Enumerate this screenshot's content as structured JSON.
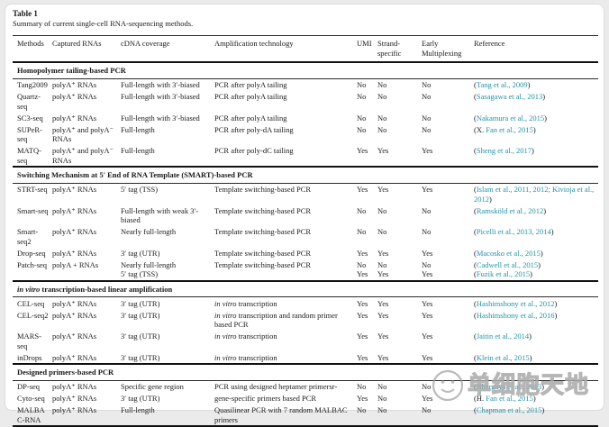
{
  "colors": {
    "citation_link": "#2093a8",
    "text": "#1a1a1a",
    "page_background": "#ebebeb"
  },
  "header": {
    "label": "Table 1",
    "caption": "Summary of current single-cell RNA-sequencing methods."
  },
  "table": {
    "columns": [
      "Methods",
      "Captured RNAs",
      "cDNA coverage",
      "Amplification technology",
      "UMI",
      "Strand-specific",
      "Early Multiplexing",
      "Reference"
    ],
    "sections": [
      {
        "title": "Homopolymer tailing-based PCR",
        "rows": [
          {
            "method": "Tang2009",
            "captured": "polyA⁺ RNAs",
            "coverage": "Full-length with 3′-biased",
            "amplification": "PCR after polyA tailing",
            "umi": "No",
            "strand": "No",
            "early": "No",
            "refs": [
              {
                "pre": "(",
                "link": "Tang et al., 2009",
                "post": ")"
              }
            ]
          },
          {
            "method": "Quartz-seq",
            "captured": "polyA⁺ RNAs",
            "coverage": "Full-length with 3′-biased",
            "amplification": "PCR after polyA tailing",
            "umi": "No",
            "strand": "No",
            "early": "No",
            "refs": [
              {
                "pre": "(",
                "link": "Sasagawa et al., 2013",
                "post": ")"
              }
            ]
          },
          {
            "method": "SC3-seq",
            "captured": "polyA⁺ RNAs",
            "coverage": "Full-length with 3′-biased",
            "amplification": "PCR after polyA tailing",
            "umi": "No",
            "strand": "No",
            "early": "No",
            "refs": [
              {
                "pre": "(",
                "link": "Nakamura et al., 2015",
                "post": ")"
              }
            ]
          },
          {
            "method": "SUPeR-seq",
            "captured": "polyA⁺ and polyA⁻ RNAs",
            "coverage": "Full-length",
            "amplification": "PCR after poly-dA tailing",
            "umi": "No",
            "strand": "No",
            "early": "No",
            "refs": [
              {
                "pre": "(X. ",
                "link": "Fan et al., 2015",
                "post": ")"
              }
            ]
          },
          {
            "method": "MATQ-seq",
            "captured": "polyA⁺ and polyA⁻ RNAs",
            "coverage": "Full-length",
            "amplification": "PCR after poly-dC tailing",
            "umi": "Yes",
            "strand": "Yes",
            "early": "Yes",
            "refs": [
              {
                "pre": "(",
                "link": "Sheng et al., 2017",
                "post": ")"
              }
            ]
          }
        ]
      },
      {
        "title": "Switching Mechanism at 5′ End of RNA Template (SMART)-based PCR",
        "rows": [
          {
            "method": "STRT-seq",
            "captured": "polyA⁺ RNAs",
            "coverage": "5′ tag (TSS)",
            "amplification": "Template switching-based PCR",
            "umi": "Yes",
            "strand": "Yes",
            "early": "Yes",
            "refs": [
              {
                "pre": "(",
                "link": "Islam et al., 2011, 2012; Kivioja et al., 2012",
                "post": ")"
              }
            ]
          },
          {
            "method": "Smart-seq",
            "captured": "polyA⁺ RNAs",
            "coverage": "Full-length with weak 3′-biased",
            "amplification": "Template switching-based PCR",
            "umi": "No",
            "strand": "No",
            "early": "No",
            "refs": [
              {
                "pre": "(",
                "link": "Ramsköld et al., 2012",
                "post": ")"
              }
            ]
          },
          {
            "method": "Smart-seq2",
            "captured": "polyA⁺ RNAs",
            "coverage": "Nearly full-length",
            "amplification": "Template switching-based PCR",
            "umi": "No",
            "strand": "No",
            "early": "No",
            "refs": [
              {
                "pre": "(",
                "link": "Picelli et al., 2013, 2014",
                "post": ")"
              }
            ]
          },
          {
            "method": "Drop-seq",
            "captured": "polyA⁺ RNAs",
            "coverage": "3′ tag (UTR)",
            "amplification": "Template switching-based PCR",
            "umi": "Yes",
            "strand": "Yes",
            "early": "Yes",
            "refs": [
              {
                "pre": "(",
                "link": "Macosko et al., 2015",
                "post": ")"
              }
            ]
          },
          {
            "method": "Patch-seq",
            "captured": "polyA + RNAs",
            "coverage": "Nearly full-length\n5′ tag (TSS)",
            "amplification": "Template switching-based PCR",
            "umi": "No\nYes",
            "strand": "No\nYes",
            "early": "No\nYes",
            "refs": [
              {
                "pre": "(",
                "link": "Cadwell et al., 2015",
                "post": ")"
              },
              {
                "pre": "(",
                "link": "Fuzik et al., 2015",
                "post": ")"
              }
            ]
          }
        ]
      },
      {
        "title": "in vitro transcription-based linear amplification",
        "rows": [
          {
            "method": "CEL-seq",
            "captured": "polyA⁺ RNAs",
            "coverage": "3′ tag (UTR)",
            "amplification": "in vitro transcription",
            "umi": "Yes",
            "strand": "Yes",
            "early": "Yes",
            "refs": [
              {
                "pre": "(",
                "link": "Hashimshony et al., 2012",
                "post": ")"
              }
            ]
          },
          {
            "method": "CEL-seq2",
            "captured": "polyA⁺ RNAs",
            "coverage": "3′ tag (UTR)",
            "amplification": "in vitro transcription and random primer based PCR",
            "umi": "Yes",
            "strand": "Yes",
            "early": "Yes",
            "refs": [
              {
                "pre": "(",
                "link": "Hashimshony et al., 2016",
                "post": ")"
              }
            ]
          },
          {
            "method": "MARS-seq",
            "captured": "polyA⁺ RNAs",
            "coverage": "3′ tag (UTR)",
            "amplification": "in vitro transcription",
            "umi": "Yes",
            "strand": "Yes",
            "early": "Yes",
            "refs": [
              {
                "pre": "(",
                "link": "Jaitin et al., 2014",
                "post": ")"
              }
            ]
          },
          {
            "method": "inDrops",
            "captured": "polyA⁺ RNAs",
            "coverage": "3′ tag (UTR)",
            "amplification": "in vitro transcription",
            "umi": "Yes",
            "strand": "Yes",
            "early": "Yes",
            "refs": [
              {
                "pre": "(",
                "link": "Klein et al., 2015",
                "post": ")"
              }
            ]
          }
        ]
      },
      {
        "title": "Designed primers-based PCR",
        "rows": [
          {
            "method": "DP-seq",
            "captured": "polyA⁺ RNAs",
            "coverage": "Specific gene region",
            "amplification": "PCR using designed heptamer primersr-",
            "umi": "No",
            "strand": "No",
            "early": "No",
            "refs": [
              {
                "pre": "(",
                "link": "Bhargava et al., 2013",
                "post": ")"
              }
            ]
          },
          {
            "method": "Cyto-seq",
            "captured": "polyA⁺ RNAs",
            "coverage": "3′ tag (UTR)",
            "amplification": "gene-specific primers based PCR",
            "umi": "Yes",
            "strand": "No",
            "early": "Yes",
            "refs": [
              {
                "pre": "(H. ",
                "link": "Fan et al., 2015",
                "post": ")"
              }
            ]
          },
          {
            "method": "MALBAC-RNA",
            "captured": "polyA⁺ RNAs",
            "coverage": "Full-length",
            "amplification": "Quasilinear PCR with 7 random MALBAC primers",
            "umi": "No",
            "strand": "No",
            "early": "No",
            "refs": [
              {
                "pre": "(",
                "link": "Chapman et al., 2015",
                "post": ")"
              }
            ]
          }
        ]
      }
    ]
  },
  "watermark": {
    "text": "单细胞天地",
    "logo": "smiley-face-icon"
  }
}
